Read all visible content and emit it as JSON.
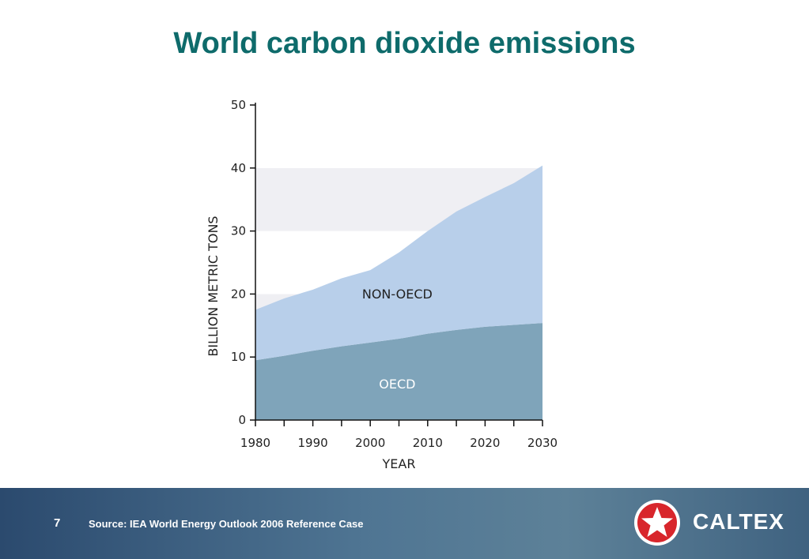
{
  "title": "World carbon dioxide emissions",
  "chart_data": {
    "type": "area",
    "stacked": true,
    "xlabel": "YEAR",
    "ylabel": "BILLION METRIC TONS",
    "ylim": [
      0,
      50
    ],
    "xlim": [
      1980,
      2030
    ],
    "x_ticks": [
      "1980",
      "1990",
      "2000",
      "2010",
      "2020",
      "2030"
    ],
    "y_ticks": [
      "0",
      "10",
      "20",
      "30",
      "40",
      "50"
    ],
    "grid": "alternating horizontal bands",
    "x": [
      1980,
      1985,
      1990,
      1995,
      2000,
      2005,
      2010,
      2015,
      2020,
      2025,
      2030
    ],
    "series": [
      {
        "name": "OECD",
        "color": "#7fa4ba",
        "values": [
          9.5,
          10.2,
          11.0,
          11.7,
          12.3,
          12.9,
          13.7,
          14.3,
          14.8,
          15.1,
          15.4
        ]
      },
      {
        "name": "NON-OECD",
        "color": "#b8cfea",
        "values": [
          8.0,
          9.1,
          9.7,
          10.8,
          11.5,
          13.7,
          16.3,
          18.8,
          20.6,
          22.5,
          25.0
        ]
      }
    ]
  },
  "footer": {
    "page_number": "7",
    "source": "Source: IEA World Energy Outlook 2006 Reference Case",
    "brand_name": "CALTEX",
    "logo_icon": "caltex-star-logo-icon"
  }
}
